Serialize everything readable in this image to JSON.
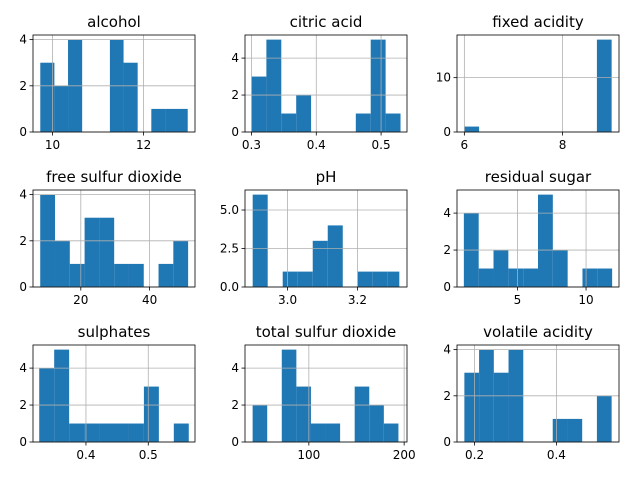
{
  "colors": {
    "bar": "#1f77b4",
    "grid": "#b0b0b0",
    "axis": "#000000"
  },
  "chart_data": [
    {
      "type": "bar",
      "title": "alcohol",
      "grid": true,
      "xlim": [
        9.57,
        13.13
      ],
      "ylim": [
        0,
        4.2
      ],
      "bins": [
        [
          9.73,
          10.04,
          3
        ],
        [
          10.04,
          10.34,
          2
        ],
        [
          10.34,
          10.65,
          4
        ],
        [
          10.65,
          10.95,
          0
        ],
        [
          10.95,
          11.26,
          0
        ],
        [
          11.26,
          11.56,
          4
        ],
        [
          11.56,
          11.87,
          3
        ],
        [
          11.87,
          12.17,
          0
        ],
        [
          12.17,
          12.48,
          1
        ],
        [
          12.48,
          12.97,
          1
        ]
      ],
      "xticks": [
        10,
        12
      ],
      "xtick_labels": [
        "10",
        "12"
      ],
      "yticks": [
        0,
        2,
        4
      ],
      "ytick_labels": [
        "0",
        "2",
        "4"
      ]
    },
    {
      "type": "bar",
      "title": "citric acid",
      "grid": true,
      "xlim": [
        0.29,
        0.54
      ],
      "ylim": [
        0,
        5.25
      ],
      "bins": [
        [
          0.3,
          0.323,
          3
        ],
        [
          0.323,
          0.346,
          5
        ],
        [
          0.346,
          0.369,
          1
        ],
        [
          0.369,
          0.392,
          2
        ],
        [
          0.392,
          0.415,
          0
        ],
        [
          0.415,
          0.438,
          0
        ],
        [
          0.438,
          0.461,
          0
        ],
        [
          0.461,
          0.484,
          1
        ],
        [
          0.484,
          0.507,
          5
        ],
        [
          0.507,
          0.53,
          1
        ]
      ],
      "xticks": [
        0.3,
        0.4,
        0.5
      ],
      "xtick_labels": [
        "0.3",
        "0.4",
        "0.5"
      ],
      "yticks": [
        0,
        2,
        4
      ],
      "ytick_labels": [
        "0",
        "2",
        "4"
      ]
    },
    {
      "type": "bar",
      "title": "fixed acidity",
      "grid": true,
      "xlim": [
        5.85,
        9.15
      ],
      "ylim": [
        0,
        17.85
      ],
      "bins": [
        [
          6.0,
          6.3,
          1
        ],
        [
          6.3,
          6.6,
          0
        ],
        [
          6.6,
          6.9,
          0
        ],
        [
          6.9,
          7.2,
          0
        ],
        [
          7.2,
          7.5,
          0
        ],
        [
          7.5,
          7.8,
          0
        ],
        [
          7.8,
          8.1,
          0
        ],
        [
          8.1,
          8.4,
          0
        ],
        [
          8.4,
          8.7,
          0
        ],
        [
          8.7,
          9.0,
          17
        ]
      ],
      "xticks": [
        6,
        8
      ],
      "xtick_labels": [
        "6",
        "8"
      ],
      "yticks": [
        0,
        10
      ],
      "ytick_labels": [
        "0",
        "10"
      ]
    },
    {
      "type": "bar",
      "title": "free sulfur dioxide",
      "grid": true,
      "xlim": [
        6.1,
        53.2
      ],
      "ylim": [
        0,
        4.2
      ],
      "bins": [
        [
          8.2,
          12.5,
          4
        ],
        [
          12.5,
          16.8,
          2
        ],
        [
          16.8,
          21.1,
          1
        ],
        [
          21.1,
          25.4,
          3
        ],
        [
          25.4,
          29.7,
          3
        ],
        [
          29.7,
          34.0,
          1
        ],
        [
          34.0,
          38.3,
          1
        ],
        [
          38.3,
          42.6,
          0
        ],
        [
          42.6,
          46.9,
          1
        ],
        [
          46.9,
          51.2,
          2
        ]
      ],
      "xticks": [
        20,
        40
      ],
      "xtick_labels": [
        "20",
        "40"
      ],
      "yticks": [
        0,
        2,
        4
      ],
      "ytick_labels": [
        "0",
        "2",
        "4"
      ]
    },
    {
      "type": "bar",
      "title": "pH",
      "grid": true,
      "xlim": [
        2.878,
        3.342
      ],
      "ylim": [
        0,
        6.3
      ],
      "bins": [
        [
          2.9,
          2.943,
          6
        ],
        [
          2.943,
          2.986,
          0
        ],
        [
          2.986,
          3.029,
          1
        ],
        [
          3.029,
          3.072,
          1
        ],
        [
          3.072,
          3.115,
          3
        ],
        [
          3.115,
          3.158,
          4
        ],
        [
          3.158,
          3.201,
          0
        ],
        [
          3.201,
          3.244,
          1
        ],
        [
          3.244,
          3.287,
          1
        ],
        [
          3.287,
          3.32,
          1
        ]
      ],
      "xticks": [
        3.0,
        3.2
      ],
      "xtick_labels": [
        "3.0",
        "3.2"
      ],
      "yticks": [
        0,
        2.5,
        5
      ],
      "ytick_labels": [
        "0.0",
        "2.5",
        "5.0"
      ]
    },
    {
      "type": "bar",
      "title": "residual sugar",
      "grid": true,
      "xlim": [
        0.6,
        12.4
      ],
      "ylim": [
        0,
        5.25
      ],
      "bins": [
        [
          1.1,
          2.18,
          4
        ],
        [
          2.18,
          3.26,
          1
        ],
        [
          3.26,
          4.34,
          2
        ],
        [
          4.34,
          5.42,
          1
        ],
        [
          5.42,
          6.5,
          1
        ],
        [
          6.5,
          7.58,
          5
        ],
        [
          7.58,
          8.66,
          2
        ],
        [
          8.66,
          9.74,
          0
        ],
        [
          9.74,
          10.82,
          1
        ],
        [
          10.82,
          11.9,
          1
        ]
      ],
      "xticks": [
        5,
        10
      ],
      "xtick_labels": [
        "5",
        "10"
      ],
      "yticks": [
        0,
        2,
        4
      ],
      "ytick_labels": [
        "0",
        "2",
        "4"
      ]
    },
    {
      "type": "bar",
      "title": "sulphates",
      "grid": true,
      "xlim": [
        0.315,
        0.575
      ],
      "ylim": [
        0,
        5.25
      ],
      "bins": [
        [
          0.325,
          0.349,
          4
        ],
        [
          0.349,
          0.373,
          5
        ],
        [
          0.373,
          0.397,
          1
        ],
        [
          0.397,
          0.421,
          1
        ],
        [
          0.421,
          0.445,
          1
        ],
        [
          0.445,
          0.469,
          1
        ],
        [
          0.469,
          0.493,
          1
        ],
        [
          0.493,
          0.517,
          3
        ],
        [
          0.517,
          0.541,
          0
        ],
        [
          0.541,
          0.565,
          1
        ]
      ],
      "xticks": [
        0.4,
        0.5
      ],
      "xtick_labels": [
        "0.4",
        "0.5"
      ],
      "yticks": [
        0,
        2,
        4
      ],
      "ytick_labels": [
        "0",
        "2",
        "4"
      ]
    },
    {
      "type": "bar",
      "title": "total sulfur dioxide",
      "grid": true,
      "xlim": [
        33,
        203
      ],
      "ylim": [
        0,
        5.25
      ],
      "bins": [
        [
          41,
          56.3,
          2
        ],
        [
          56.3,
          71.6,
          0
        ],
        [
          71.6,
          86.9,
          5
        ],
        [
          86.9,
          102.2,
          3
        ],
        [
          102.2,
          117.5,
          1
        ],
        [
          117.5,
          132.8,
          1
        ],
        [
          132.8,
          148.1,
          0
        ],
        [
          148.1,
          163.4,
          3
        ],
        [
          163.4,
          178.7,
          2
        ],
        [
          178.7,
          194,
          1
        ]
      ],
      "xticks": [
        100,
        200
      ],
      "xtick_labels": [
        "100",
        "200"
      ],
      "yticks": [
        0,
        2,
        4
      ],
      "ytick_labels": [
        "0",
        "2",
        "4"
      ]
    },
    {
      "type": "bar",
      "title": "volatile acidity",
      "grid": true,
      "xlim": [
        0.157,
        0.553
      ],
      "ylim": [
        0,
        4.2
      ],
      "bins": [
        [
          0.175,
          0.211,
          3
        ],
        [
          0.211,
          0.247,
          4
        ],
        [
          0.247,
          0.283,
          3
        ],
        [
          0.283,
          0.319,
          4
        ],
        [
          0.319,
          0.355,
          0
        ],
        [
          0.355,
          0.391,
          0
        ],
        [
          0.391,
          0.427,
          1
        ],
        [
          0.427,
          0.463,
          1
        ],
        [
          0.463,
          0.499,
          0
        ],
        [
          0.499,
          0.535,
          2
        ]
      ],
      "xticks": [
        0.2,
        0.4
      ],
      "xtick_labels": [
        "0.2",
        "0.4"
      ],
      "yticks": [
        0,
        2,
        4
      ],
      "ytick_labels": [
        "0",
        "2",
        "4"
      ]
    }
  ]
}
